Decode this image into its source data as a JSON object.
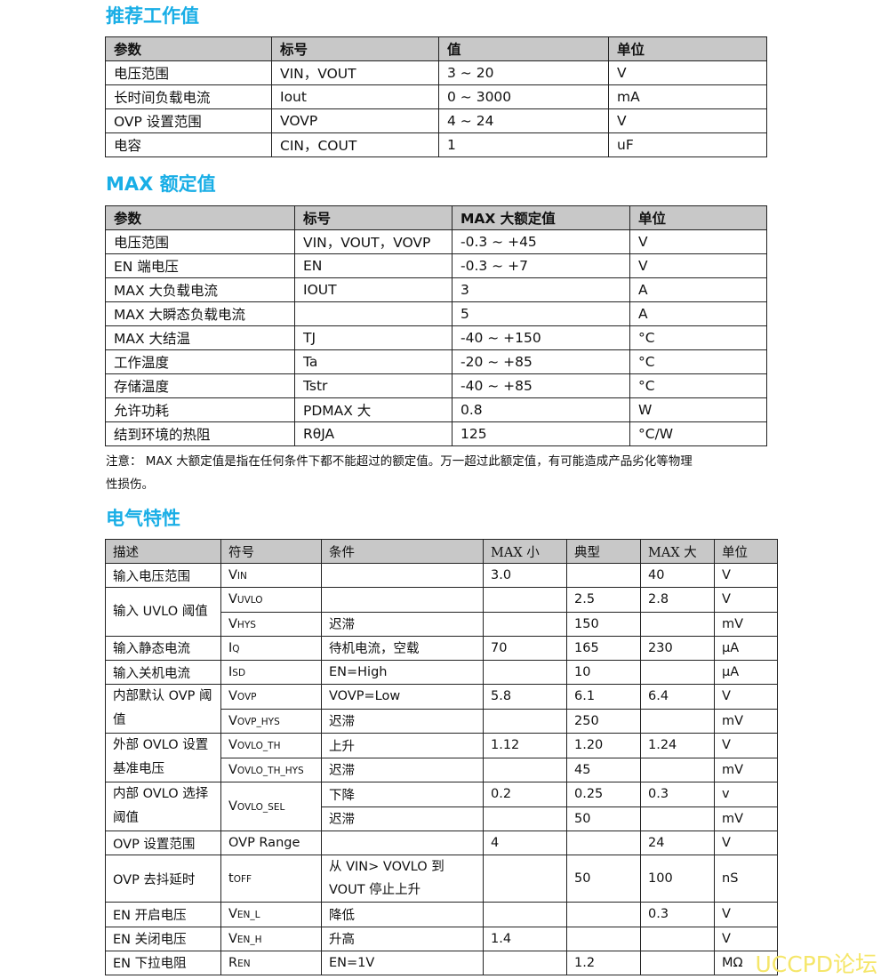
{
  "sections": {
    "recommended": {
      "title": "推荐工作值",
      "headers": [
        "参数",
        "标号",
        "值",
        "单位"
      ],
      "rows": [
        [
          "电压范围",
          "VIN，VOUT",
          "3 ~ 20",
          "V"
        ],
        [
          "长时间负载电流",
          "Iout",
          "0 ~ 3000",
          "mA"
        ],
        [
          "OVP 设置范围",
          "VOVP",
          "4 ~ 24",
          "V"
        ],
        [
          "电容",
          "CIN，COUT",
          "1",
          "uF"
        ]
      ]
    },
    "max_rating": {
      "title": "MAX 额定值",
      "headers": [
        "参数",
        "标号",
        "MAX 大额定值",
        "单位"
      ],
      "rows": [
        [
          "电压范围",
          "VIN，VOUT，VOVP",
          "-0.3 ~ +45",
          "V"
        ],
        [
          "EN 端电压",
          "EN",
          "-0.3 ~ +7",
          "V"
        ],
        [
          "MAX 大负载电流",
          "IOUT",
          "3",
          "A"
        ],
        [
          "MAX 大瞬态负载电流",
          "",
          "5",
          "A"
        ],
        [
          "MAX 大结温",
          "TJ",
          "-40 ~ +150",
          "°C"
        ],
        [
          "工作温度",
          "Ta",
          "-20 ~ +85",
          "°C"
        ],
        [
          "存储温度",
          "Tstr",
          "-40 ~ +85",
          "°C"
        ],
        [
          "允许功耗",
          "PDMAX 大",
          "0.8",
          "W"
        ],
        [
          "结到环境的热阻",
          "RθJA",
          "125",
          "°C/W"
        ]
      ],
      "note_line1": "注意：  MAX 大额定值是指在任何条件下都不能超过的额定值。万一超过此额定值，有可能造成产品劣化等物理",
      "note_line2": "性损伤。"
    },
    "electrical": {
      "title": "电气特性",
      "headers": [
        "描述",
        "符号",
        "条件",
        "MAX 小",
        "典型",
        "MAX 大",
        "单位"
      ],
      "rows": [
        [
          "输入电压范围",
          [
            "V",
            "IN"
          ],
          "",
          "3.0",
          "",
          "40",
          "V"
        ],
        [
          "输入 UVLO 阈值",
          [
            "V",
            "UVLO"
          ],
          "",
          "",
          "2.5",
          "2.8",
          "V"
        ],
        [
          null,
          [
            "V",
            "HYS"
          ],
          "迟滞",
          "",
          "150",
          "",
          "mV"
        ],
        [
          "输入静态电流",
          [
            "I",
            "Q"
          ],
          "待机电流，空载",
          "70",
          "165",
          "230",
          "µA"
        ],
        [
          "输入关机电流",
          [
            "I",
            "SD"
          ],
          "EN=High",
          "",
          "10",
          "",
          "µA"
        ],
        [
          "内部默认 OVP 阈值",
          [
            "V",
            "OVP"
          ],
          "VOVP=Low",
          "5.8",
          "6.1",
          "6.4",
          "V"
        ],
        [
          null,
          [
            "V",
            "OVP_HYS"
          ],
          "迟滞",
          "",
          "250",
          "",
          "mV"
        ],
        [
          "外部 OVLO 设置基准电压",
          [
            "V",
            "OVLO_TH"
          ],
          "上升",
          "1.12",
          "1.20",
          "1.24",
          "V"
        ],
        [
          null,
          [
            "V",
            "OVLO_TH_HYS"
          ],
          "迟滞",
          "",
          "45",
          "",
          "mV"
        ],
        [
          "内部 OVLO 选择阈值",
          [
            "V",
            "OVLO_SEL"
          ],
          "下降",
          "0.2",
          "0.25",
          "0.3",
          "v"
        ],
        [
          null,
          null,
          "迟滞",
          "",
          "50",
          "",
          "mV"
        ],
        [
          "OVP 设置范围",
          [
            "OVP Range",
            ""
          ],
          "",
          "4",
          "",
          "24",
          "V"
        ],
        [
          "OVP 去抖延时",
          [
            "t",
            "OFF"
          ],
          "从 VIN> VOVLO 到 VOUT 停止上升",
          "",
          "50",
          "100",
          "nS"
        ],
        [
          "EN 开启电压",
          [
            "V",
            "EN_L"
          ],
          "降低",
          "",
          "",
          "0.3",
          "V"
        ],
        [
          "EN 关闭电压",
          [
            "V",
            "EN_H"
          ],
          "升高",
          "1.4",
          "",
          "",
          "V"
        ],
        [
          "EN 下拉电阻",
          [
            "R",
            "EN"
          ],
          "EN=1V",
          "",
          "1.2",
          "",
          "MΩ"
        ]
      ]
    }
  },
  "watermark": "UCCPD论坛"
}
